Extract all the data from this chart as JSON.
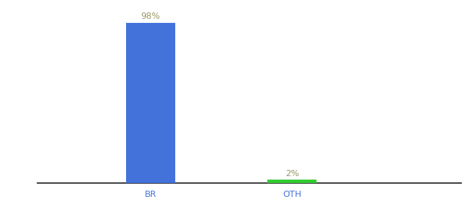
{
  "categories": [
    "BR",
    "OTH"
  ],
  "values": [
    98,
    2
  ],
  "bar_colors": [
    "#4472db",
    "#33cc33"
  ],
  "label_color": "#999966",
  "annotations": [
    "98%",
    "2%"
  ],
  "ylim": [
    0,
    108
  ],
  "bar_width": 0.35,
  "background_color": "#ffffff",
  "axis_line_color": "#111111",
  "tick_label_color": "#4472db",
  "tick_label_fontsize": 9,
  "annotation_fontsize": 9,
  "figsize": [
    6.8,
    3.0
  ],
  "dpi": 100,
  "x_positions": [
    1,
    2
  ],
  "xlim": [
    0.2,
    3.2
  ]
}
